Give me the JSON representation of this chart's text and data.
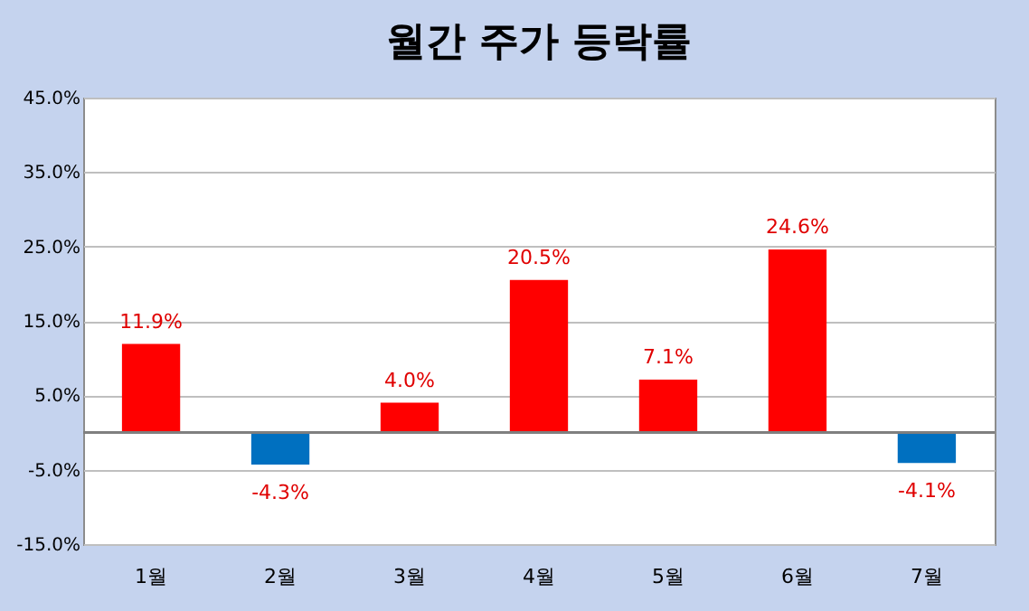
{
  "chart_data": {
    "type": "bar",
    "title": "월간 주가 등락률",
    "categories": [
      "1월",
      "2월",
      "3월",
      "4월",
      "5월",
      "6월",
      "7월"
    ],
    "values": [
      11.9,
      -4.3,
      4.0,
      20.5,
      7.1,
      24.6,
      -4.1
    ],
    "colors": [
      "#ff0000",
      "#0070c0",
      "#ff0000",
      "#ff0000",
      "#ff0000",
      "#ff0000",
      "#0070c0"
    ],
    "value_labels": [
      "11.9%",
      "-4.3%",
      "4.0%",
      "20.5%",
      "7.1%",
      "24.6%",
      "-4.1%"
    ],
    "ylim": [
      -15,
      45
    ],
    "yticks": [
      {
        "value": -15,
        "label": "-15.0%"
      },
      {
        "value": -5,
        "label": "-5.0%"
      },
      {
        "value": 5,
        "label": "5.0%"
      },
      {
        "value": 15,
        "label": "15.0%"
      },
      {
        "value": 25,
        "label": "25.0%"
      },
      {
        "value": 35,
        "label": "35.0%"
      },
      {
        "value": 45,
        "label": "45.0%"
      }
    ],
    "grid": "y"
  }
}
